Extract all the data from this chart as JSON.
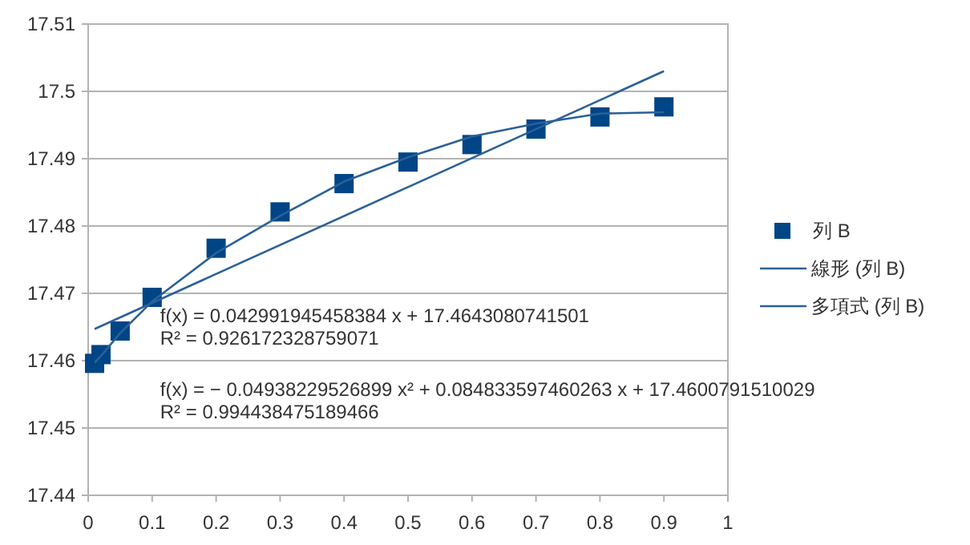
{
  "chart_data": {
    "type": "scatter",
    "x": [
      0.01,
      0.02,
      0.05,
      0.1,
      0.2,
      0.3,
      0.4,
      0.5,
      0.6,
      0.7,
      0.8,
      0.9
    ],
    "series": [
      {
        "name": "列 B",
        "marker": "square",
        "color": "#004586",
        "values": [
          17.4596,
          17.4609,
          17.4644,
          17.4694,
          17.4767,
          17.4821,
          17.4863,
          17.4895,
          17.4921,
          17.4944,
          17.4962,
          17.4977
        ]
      },
      {
        "name": "線形 (列 B)",
        "type": "line",
        "marker": "none",
        "color": "#2a6099",
        "x": [
          0.01,
          0.9
        ],
        "values": [
          17.4647,
          17.503
        ]
      },
      {
        "name": "多項式 (列 B)",
        "type": "line",
        "marker": "none",
        "color": "#2a6099",
        "x": [
          0.01,
          0.02,
          0.05,
          0.1,
          0.2,
          0.3,
          0.4,
          0.5,
          0.6,
          0.7,
          0.8,
          0.9
        ],
        "values": [
          17.4597,
          17.4607,
          17.4641,
          17.4688,
          17.476,
          17.4815,
          17.4866,
          17.4902,
          17.4933,
          17.4952,
          17.4967,
          17.4969
        ]
      }
    ],
    "annotations": [
      "f(x) = 0.042991945458384 x + 17.4643080741501",
      "R² = 0.926172328759071",
      "f(x) = − 0.04938229526899 x² + 0.084833597460263 x + 17.4600791510029",
      "R² = 0.994438475189466"
    ],
    "xlim": [
      0,
      1
    ],
    "xticks": [
      0,
      0.1,
      0.2,
      0.3,
      0.4,
      0.5,
      0.6,
      0.7,
      0.8,
      0.9,
      1
    ],
    "ylim": [
      17.44,
      17.51
    ],
    "yticks": [
      17.44,
      17.45,
      17.46,
      17.47,
      17.48,
      17.49,
      17.5,
      17.51
    ],
    "grid": "y",
    "legend": "right",
    "line_style": "solid"
  }
}
